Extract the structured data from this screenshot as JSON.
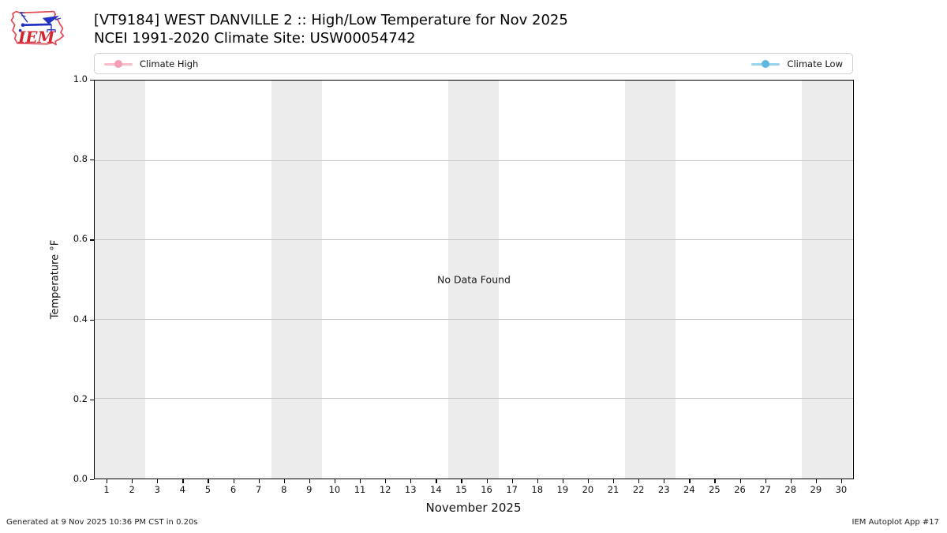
{
  "header": {
    "title_line1": "[VT9184] WEST DANVILLE 2 :: High/Low Temperature for Nov 2025",
    "title_line2": "NCEI 1991-2020 Climate Site: USW00054742",
    "logo_text": "IEM"
  },
  "legend": {
    "items": [
      {
        "label": "Climate High",
        "line_color": "#f9bcc8",
        "marker_color": "#f49fb6"
      },
      {
        "label": "Climate Low",
        "line_color": "#99d2ec",
        "marker_color": "#5fb6de"
      }
    ]
  },
  "chart_data": {
    "type": "line",
    "title": "[VT9184] WEST DANVILLE 2 :: High/Low Temperature for Nov 2025 — NCEI 1991-2020 Climate Site: USW00054742",
    "xlabel": "November 2025",
    "ylabel": "Temperature °F",
    "annotation": "No Data Found",
    "xlim": [
      0.5,
      30.5
    ],
    "ylim": [
      0.0,
      1.0
    ],
    "x_ticks": [
      1,
      2,
      3,
      4,
      5,
      6,
      7,
      8,
      9,
      10,
      11,
      12,
      13,
      14,
      15,
      16,
      17,
      18,
      19,
      20,
      21,
      22,
      23,
      24,
      25,
      26,
      27,
      28,
      29,
      30
    ],
    "y_ticks": [
      "0.0",
      "0.2",
      "0.4",
      "0.6",
      "0.8",
      "1.0"
    ],
    "grid": "horizontal",
    "legend_position": "top",
    "weekend_bands": [
      [
        0.5,
        2.5
      ],
      [
        7.5,
        9.5
      ],
      [
        14.5,
        16.5
      ],
      [
        21.5,
        23.5
      ],
      [
        28.5,
        30.5
      ]
    ],
    "band_color": "#ececec",
    "grid_color": "#c9c9c9",
    "series": [
      {
        "name": "Climate High",
        "color": "#f9bcc8",
        "x": [],
        "values": []
      },
      {
        "name": "Climate Low",
        "color": "#99d2ec",
        "x": [],
        "values": []
      }
    ]
  },
  "footer": {
    "left": "Generated at 9 Nov 2025 10:36 PM CST in 0.20s",
    "right": "IEM Autoplot App #17"
  }
}
